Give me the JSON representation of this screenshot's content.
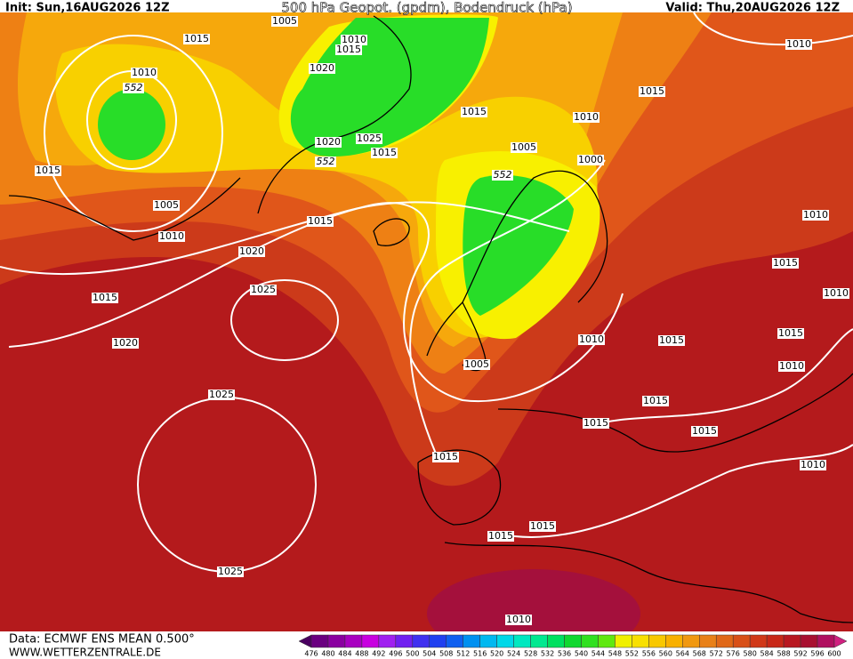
{
  "header": {
    "init": "Init: Sun,16AUG2026 12Z",
    "title": "500 hPa Geopot. (gpdm), Bodendruck (hPa)",
    "valid": "Valid: Thu,20AUG2026 12Z"
  },
  "isobar_labels": [
    1005,
    1010,
    1015,
    1015,
    1010,
    1020,
    1015,
    1015,
    1010,
    1010,
    1020,
    1025,
    1015,
    1005,
    1000,
    1015,
    1005,
    1010,
    1015,
    1010,
    1020,
    1015,
    1010,
    1025,
    1015,
    1010,
    1015,
    1015,
    1020,
    1005,
    1010,
    1015,
    1025,
    1015,
    1015,
    1015,
    1010,
    1015,
    1015,
    1025,
    1010
  ],
  "height_labels": [
    552,
    552,
    552
  ],
  "colorbar": {
    "labels": [
      476,
      480,
      484,
      488,
      492,
      496,
      500,
      504,
      508,
      512,
      516,
      520,
      524,
      528,
      532,
      536,
      540,
      544,
      548,
      552,
      556,
      560,
      564,
      568,
      572,
      576,
      580,
      584,
      588,
      592,
      596,
      600
    ],
    "colors": [
      "#4a0060",
      "#6a0080",
      "#8a00a0",
      "#a800c0",
      "#c800e0",
      "#a020f0",
      "#7020f0",
      "#4030f0",
      "#2040f0",
      "#1060f0",
      "#0090f0",
      "#00b8f0",
      "#00d8e8",
      "#00e8c0",
      "#00e890",
      "#00e060",
      "#10d830",
      "#30e020",
      "#60e810",
      "#f0f000",
      "#f8e000",
      "#f8c800",
      "#f8b000",
      "#f09810",
      "#e88018",
      "#e06818",
      "#d85018",
      "#d03818",
      "#c82818",
      "#b81820",
      "#a81030",
      "#b01060",
      "#d02080"
    ]
  },
  "footer": {
    "source": "Data: ECMWF ENS MEAN 0.500°",
    "site": "WWW.WETTERZENTRALE.DE"
  }
}
